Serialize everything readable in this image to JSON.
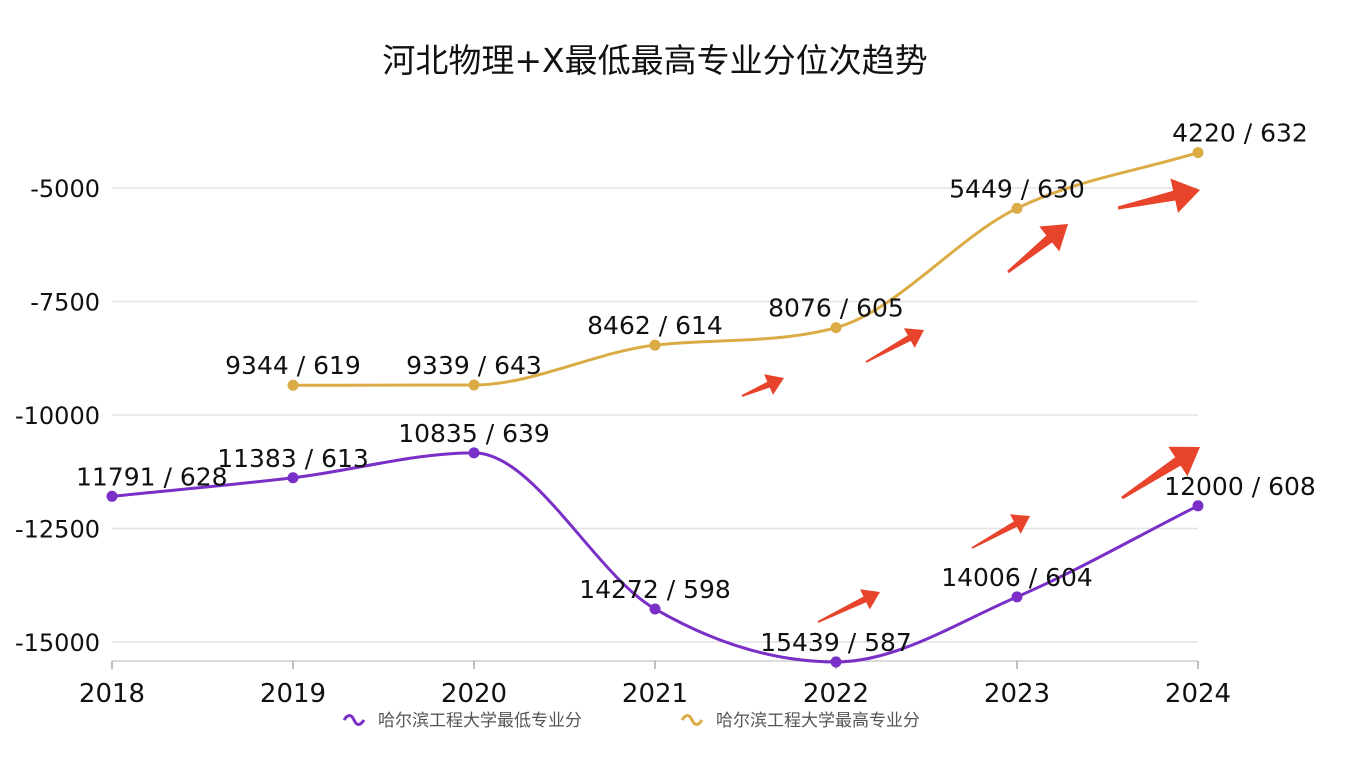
{
  "chart_data": {
    "type": "line",
    "title": "河北物理+X最低最高专业分位次趋势",
    "x": [
      "2018",
      "2019",
      "2020",
      "2021",
      "2022",
      "2023",
      "2024"
    ],
    "y_ticks": [
      "-5000",
      "-7500",
      "-10000",
      "-12500",
      "-15000"
    ],
    "ylim": [
      -15400,
      -4000
    ],
    "grid": true,
    "legend_position": "bottom",
    "smooth": true,
    "series": [
      {
        "name": "哈尔滨工程大学最低专业分",
        "color": "#7a2fc7",
        "values": [
          -11791,
          -11383,
          -10835,
          -14272,
          -15439,
          -14006,
          -12000
        ],
        "labels": [
          "11791 / 628",
          "11383 / 613",
          "10835 / 639",
          "14272 / 598",
          "15439 / 587",
          "14006 / 604",
          "12000 / 608"
        ]
      },
      {
        "name": "哈尔滨工程大学最高专业分",
        "color": "#dbac45",
        "values": [
          null,
          -9344,
          -9339,
          -8462,
          -8076,
          -5449,
          -4220
        ],
        "labels": [
          "",
          "9344 / 619",
          "9339 / 643",
          "8462 / 614",
          "8076 / 605",
          "5449 / 630",
          "4220 / 632"
        ]
      }
    ],
    "annotation_color": "#e8432b"
  }
}
